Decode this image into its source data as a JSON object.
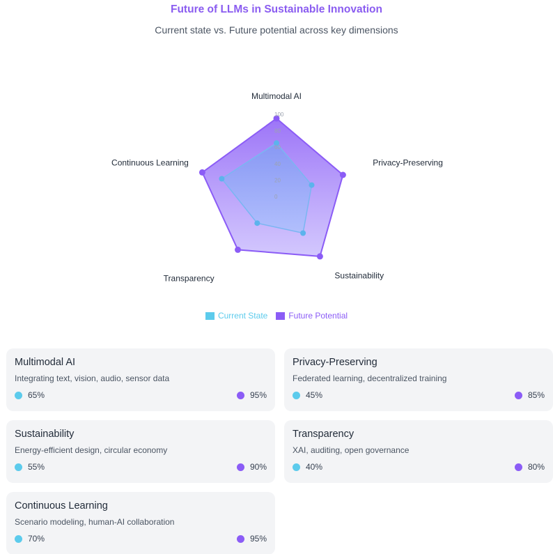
{
  "header": {
    "title": "Future of LLMs in Sustainable Innovation",
    "subtitle": "Current state vs. Future potential across key dimensions"
  },
  "colors": {
    "current": "#5ccbec",
    "future": "#8b5cf6",
    "title": "#8a5cf0"
  },
  "chart_data": {
    "type": "radar",
    "title": "Future of LLMs in Sustainable Innovation",
    "subtitle": "Current state vs. Future potential across key dimensions",
    "categories": [
      "Multimodal AI",
      "Privacy-Preserving",
      "Sustainability",
      "Transparency",
      "Continuous Learning"
    ],
    "series": [
      {
        "name": "Current State",
        "values": [
          65,
          45,
          55,
          40,
          70
        ]
      },
      {
        "name": "Future Potential",
        "values": [
          95,
          85,
          90,
          80,
          95
        ]
      }
    ],
    "radial_ticks": [
      0,
      20,
      40,
      60,
      80,
      100
    ],
    "range": [
      0,
      100
    ],
    "legend": "bottom"
  },
  "legend": {
    "current_label": "Current State",
    "future_label": "Future Potential"
  },
  "cards": [
    {
      "title": "Multimodal AI",
      "desc": "Integrating text, vision, audio, sensor data",
      "current": "65%",
      "future": "95%"
    },
    {
      "title": "Privacy-Preserving",
      "desc": "Federated learning, decentralized training",
      "current": "45%",
      "future": "85%"
    },
    {
      "title": "Sustainability",
      "desc": "Energy-efficient design, circular economy",
      "current": "55%",
      "future": "90%"
    },
    {
      "title": "Transparency",
      "desc": "XAI, auditing, open governance",
      "current": "40%",
      "future": "80%"
    },
    {
      "title": "Continuous Learning",
      "desc": "Scenario modeling, human-AI collaboration",
      "current": "70%",
      "future": "95%"
    }
  ]
}
